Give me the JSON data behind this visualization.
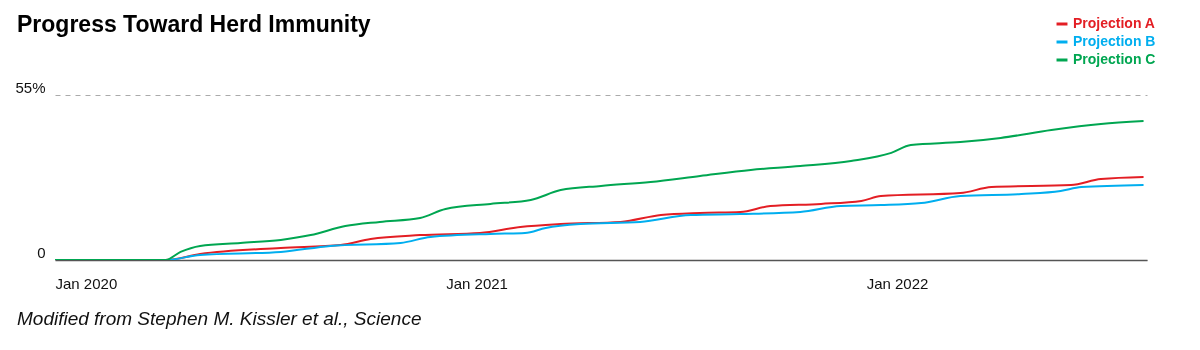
{
  "chart_data": {
    "type": "line",
    "title": "Progress Toward Herd Immunity",
    "annotations": [
      "Modified from Stephen M. Kissler et al., Science"
    ],
    "xlim": [
      "2020-01-01",
      "2022-08-06"
    ],
    "xticks": [
      {
        "value": "2020-01-01",
        "label": "Jan 2020"
      },
      {
        "value": "2021-01-01",
        "label": "Jan 2021"
      },
      {
        "value": "2022-01-01",
        "label": "Jan 2022"
      }
    ],
    "ylim": [
      0,
      55
    ],
    "yticks": [
      0,
      {
        "value": 55,
        "label": "55%"
      }
    ],
    "grid": "y",
    "legend": "top right",
    "series": [
      {
        "name": "Projection A",
        "color": "#e31e24",
        "x": [
          "2020-01-01",
          "2020-04-06",
          "2020-05-06",
          "2020-07-15",
          "2020-09-05",
          "2020-10-01",
          "2020-11-13",
          "2021-01-04",
          "2021-02-08",
          "2021-03-15",
          "2021-05-06",
          "2021-06-10",
          "2021-07-14",
          "2021-08-18",
          "2021-09-13",
          "2021-10-27",
          "2021-12-01",
          "2021-12-18",
          "2022-02-25",
          "2022-03-24",
          "2022-06-01",
          "2022-06-27",
          "2022-08-03"
        ],
        "values": [
          0,
          0,
          2,
          4,
          5,
          7,
          8.3,
          9,
          11,
          12,
          12.7,
          15,
          15.7,
          16,
          18,
          18.7,
          19.7,
          21.3,
          22.3,
          24.3,
          25,
          27,
          27.7
        ]
      },
      {
        "name": "Projection B",
        "color": "#00aeef",
        "x": [
          "2020-01-01",
          "2020-04-06",
          "2020-05-06",
          "2020-07-15",
          "2020-08-27",
          "2020-10-27",
          "2020-11-22",
          "2021-01-13",
          "2021-02-12",
          "2021-03-02",
          "2021-04-01",
          "2021-05-23",
          "2021-07-06",
          "2021-08-18",
          "2021-10-09",
          "2021-11-13",
          "2021-12-18",
          "2022-01-22",
          "2022-02-25",
          "2022-04-19",
          "2022-05-23",
          "2022-06-10",
          "2022-08-03"
        ],
        "values": [
          0,
          0,
          1.7,
          2.7,
          4.7,
          5.7,
          7.7,
          8.7,
          9,
          10.7,
          12,
          12.7,
          15,
          15.3,
          16,
          18,
          18.3,
          19,
          21.3,
          22,
          23,
          24.3,
          25
        ]
      },
      {
        "name": "Projection C",
        "color": "#00a651",
        "x": [
          "2020-01-01",
          "2020-04-06",
          "2020-04-19",
          "2020-05-06",
          "2020-06-10",
          "2020-07-15",
          "2020-08-10",
          "2020-09-09",
          "2020-10-09",
          "2020-11-13",
          "2020-12-05",
          "2021-01-13",
          "2021-02-17",
          "2021-03-15",
          "2021-04-19",
          "2021-06-01",
          "2021-07-14",
          "2021-08-27",
          "2021-10-09",
          "2021-11-22",
          "2021-12-27",
          "2022-01-13",
          "2022-02-25",
          "2022-04-01",
          "2022-05-15",
          "2022-06-27",
          "2022-08-03"
        ],
        "values": [
          0,
          0,
          2.7,
          4.7,
          5.7,
          6.7,
          8.3,
          11.3,
          12.7,
          14,
          17,
          18.7,
          20,
          23.3,
          24.7,
          26,
          28,
          30,
          31.3,
          33,
          35.7,
          38.3,
          39.3,
          40.7,
          43.3,
          45.3,
          46.3
        ]
      }
    ]
  }
}
